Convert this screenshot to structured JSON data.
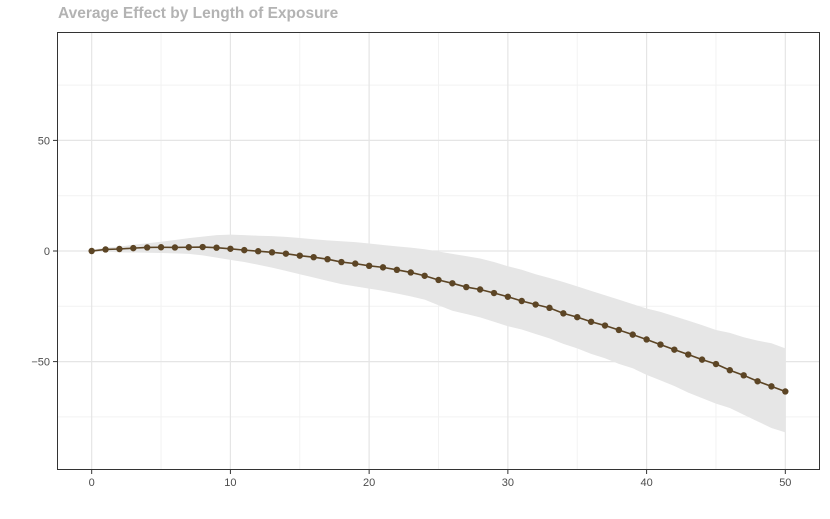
{
  "chart_data": {
    "type": "line",
    "title": "Average Effect by Length of Exposure",
    "xlabel": "",
    "ylabel": "",
    "xlim": [
      -2.5,
      52.5
    ],
    "ylim": [
      -99,
      99
    ],
    "x_ticks": [
      0,
      10,
      20,
      30,
      40,
      50
    ],
    "x_tick_labels": [
      "0",
      "10",
      "20",
      "30",
      "40",
      "50"
    ],
    "y_ticks": [
      50,
      0,
      -50
    ],
    "y_tick_labels": [
      "50",
      "0",
      "−50"
    ],
    "grid": true,
    "legend": "none",
    "series": [
      {
        "type": "line-with-points",
        "color": "#5c4525",
        "x": [
          0,
          1,
          2,
          3,
          4,
          5,
          6,
          7,
          8,
          9,
          10,
          11,
          12,
          13,
          14,
          15,
          16,
          17,
          18,
          19,
          20,
          21,
          22,
          23,
          24,
          25,
          26,
          27,
          28,
          29,
          30,
          31,
          32,
          33,
          34,
          35,
          36,
          37,
          38,
          39,
          40,
          41,
          42,
          43,
          44,
          45,
          46,
          47,
          48,
          49,
          50
        ],
        "y": [
          0,
          0.7,
          0.9,
          1.3,
          1.6,
          1.7,
          1.6,
          1.7,
          1.8,
          1.5,
          1.0,
          0.4,
          -0.1,
          -0.6,
          -1.2,
          -2.1,
          -2.8,
          -3.7,
          -5.0,
          -5.7,
          -6.7,
          -7.4,
          -8.5,
          -9.7,
          -11.2,
          -13.1,
          -14.6,
          -16.3,
          -17.4,
          -19.0,
          -20.7,
          -22.6,
          -24.2,
          -25.7,
          -28.2,
          -29.9,
          -32.0,
          -33.7,
          -35.7,
          -37.8,
          -40.0,
          -42.3,
          -44.6,
          -46.8,
          -49.1,
          -51.1,
          -53.9,
          -56.2,
          -58.9,
          -61.2,
          -63.5
        ]
      },
      {
        "type": "confidence-band",
        "color": "#e6e6e6",
        "x": [
          0,
          1,
          2,
          3,
          4,
          5,
          6,
          7,
          8,
          9,
          10,
          11,
          12,
          13,
          14,
          15,
          16,
          17,
          18,
          19,
          20,
          21,
          22,
          23,
          24,
          25,
          26,
          27,
          28,
          29,
          30,
          31,
          32,
          33,
          34,
          35,
          36,
          37,
          38,
          39,
          40,
          41,
          42,
          43,
          44,
          45,
          46,
          47,
          48,
          49,
          50
        ],
        "upper": [
          0.5,
          1.5,
          2.0,
          2.8,
          3.5,
          4.2,
          5.0,
          5.8,
          6.5,
          7.2,
          7.4,
          7.2,
          6.9,
          6.7,
          6.4,
          5.9,
          5.3,
          4.8,
          4.4,
          4.0,
          3.4,
          2.7,
          2.1,
          1.5,
          0.8,
          -0.2,
          -1.3,
          -2.3,
          -3.4,
          -5.0,
          -6.9,
          -8.5,
          -10.5,
          -12.2,
          -14.0,
          -16.0,
          -18.0,
          -20.0,
          -22.0,
          -24.0,
          -26.0,
          -27.5,
          -29.5,
          -31.5,
          -33.5,
          -35.7,
          -37.0,
          -39.0,
          -40.5,
          -41.7,
          -44.0
        ],
        "lower": [
          -0.5,
          -0.3,
          -0.6,
          -0.7,
          -0.8,
          -0.9,
          -1.1,
          -1.3,
          -2.0,
          -3.0,
          -4.0,
          -5.0,
          -6.2,
          -7.5,
          -9.0,
          -10.5,
          -12.0,
          -13.5,
          -15.0,
          -16.0,
          -17.0,
          -18.0,
          -19.2,
          -20.5,
          -22.0,
          -24.5,
          -27.0,
          -28.5,
          -30.0,
          -32.0,
          -34.0,
          -35.5,
          -37.5,
          -39.5,
          -42.0,
          -44.0,
          -46.5,
          -48.5,
          -51.0,
          -53.0,
          -56.0,
          -58.5,
          -61.0,
          -64.0,
          -66.5,
          -69.0,
          -71.0,
          -74.0,
          -77.0,
          -80.0,
          -82.0
        ]
      }
    ]
  }
}
